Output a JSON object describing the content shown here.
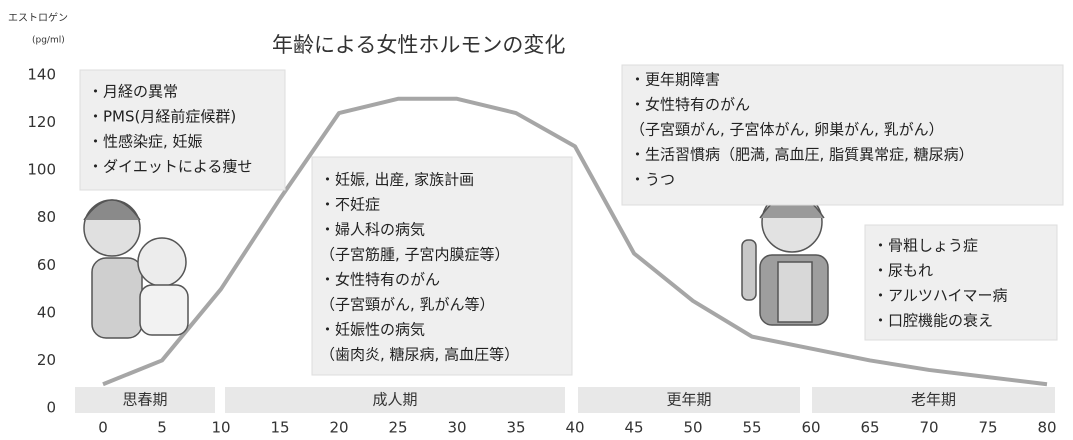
{
  "chart_data": {
    "type": "line",
    "title": "年齢による女性ホルモンの変化",
    "y_label": [
      "エストロゲン",
      "(pg/ml)"
    ],
    "x": [
      0,
      5,
      10,
      15,
      20,
      25,
      30,
      35,
      40,
      45,
      50,
      55,
      60,
      65,
      70,
      75,
      80
    ],
    "series": [
      {
        "color": "#a6a6a6",
        "values": [
          10,
          20,
          50,
          88,
          124,
          130,
          130,
          124,
          110,
          65,
          45,
          30,
          25,
          20,
          16,
          13,
          10
        ]
      }
    ],
    "xlim": [
      0,
      80
    ],
    "xticks": [
      0,
      5,
      10,
      15,
      20,
      25,
      30,
      35,
      40,
      45,
      50,
      55,
      60,
      65,
      70,
      75,
      80
    ],
    "ylim": [
      0,
      140
    ],
    "yticks": [
      0,
      20,
      40,
      60,
      80,
      100,
      120,
      140
    ],
    "grid": false,
    "phases": [
      "思春期",
      "成人期",
      "更年期",
      "老年期"
    ],
    "annotations": [
      [
        "・月経の異常",
        "・PMS(月経前症候群)",
        "・性感染症, 妊娠",
        "・ダイエットによる痩せ"
      ],
      [
        "・妊娠, 出産, 家族計画",
        "・不妊症",
        "・婦人科の病気",
        "（子宮筋腫, 子宮内膜症等）",
        "・女性特有のがん",
        "（子宮頸がん, 乳がん等）",
        "・妊娠性の病気",
        "（歯肉炎, 糖尿病, 高血圧等）"
      ],
      [
        "・更年期障害",
        "・女性特有のがん",
        "（子宮頸がん, 子宮体がん, 卵巣がん, 乳がん）",
        "・生活習慣病（肥満, 高血圧, 脂質異常症, 糖尿病）",
        "・うつ"
      ],
      [
        "・骨粗しょう症",
        "・尿もれ",
        "・アルツハイマー病",
        "・口腔機能の衰え"
      ]
    ]
  }
}
